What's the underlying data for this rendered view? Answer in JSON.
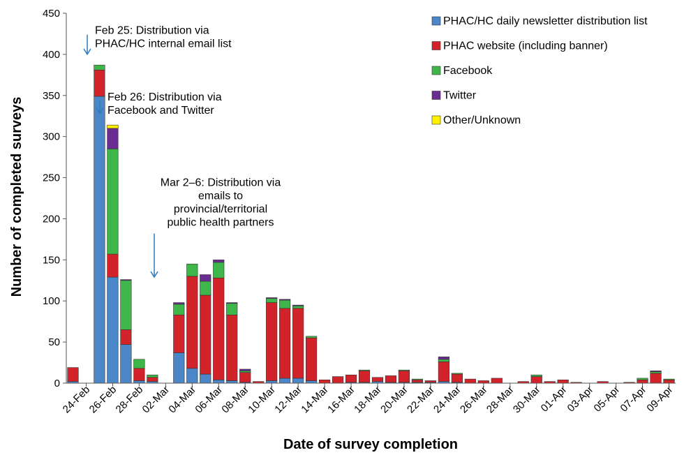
{
  "chart_data": {
    "type": "bar",
    "stacked": true,
    "title": "",
    "xlabel": "Date of survey completion",
    "ylabel": "Number of completed surveys",
    "ylim": [
      0,
      450
    ],
    "yticks": [
      0,
      50,
      100,
      150,
      200,
      250,
      300,
      350,
      400,
      450
    ],
    "grid": false,
    "legend_position": "top-right",
    "categories": [
      "23-Feb",
      "24-Feb",
      "25-Feb",
      "26-Feb",
      "27-Feb",
      "28-Feb",
      "01-Mar",
      "02-Mar",
      "03-Mar",
      "04-Mar",
      "05-Mar",
      "06-Mar",
      "07-Mar",
      "08-Mar",
      "09-Mar",
      "10-Mar",
      "11-Mar",
      "12-Mar",
      "13-Mar",
      "14-Mar",
      "15-Mar",
      "16-Mar",
      "17-Mar",
      "18-Mar",
      "19-Mar",
      "20-Mar",
      "21-Mar",
      "22-Mar",
      "23-Mar",
      "24-Mar",
      "25-Mar",
      "26-Mar",
      "27-Mar",
      "28-Mar",
      "29-Mar",
      "30-Mar",
      "31-Mar",
      "01-Apr",
      "02-Apr",
      "03-Apr",
      "04-Apr",
      "05-Apr",
      "06-Apr",
      "07-Apr",
      "08-Apr",
      "09-Apr"
    ],
    "tick_labels": [
      "24-Feb",
      "26-Feb",
      "28-Feb",
      "02-Mar",
      "04-Mar",
      "06-Mar",
      "08-Mar",
      "10-Mar",
      "12-Mar",
      "14-Mar",
      "16-Mar",
      "18-Mar",
      "20-Mar",
      "22-Mar",
      "24-Mar",
      "26-Mar",
      "28-Mar",
      "30-Mar",
      "01-Apr",
      "03-Apr",
      "05-Apr",
      "07-Apr",
      "09-Apr"
    ],
    "series": [
      {
        "name": "PHAC/HC daily newsletter distribution list",
        "color": "#4a86c8",
        "values": [
          2,
          0,
          349,
          129,
          47,
          3,
          2,
          0,
          37,
          18,
          11,
          4,
          3,
          1,
          0,
          3,
          6,
          6,
          3,
          0,
          0,
          1,
          1,
          2,
          1,
          1,
          1,
          1,
          2,
          1,
          0,
          0,
          0,
          0,
          0,
          0,
          0,
          0,
          0,
          0,
          0,
          0,
          0,
          0,
          0,
          0
        ]
      },
      {
        "name": "PHAC website (including banner)",
        "color": "#d2232a",
        "values": [
          17,
          0,
          32,
          28,
          18,
          15,
          5,
          0,
          46,
          112,
          96,
          124,
          80,
          12,
          2,
          95,
          85,
          85,
          52,
          4,
          8,
          9,
          14,
          5,
          8,
          14,
          3,
          2,
          24,
          10,
          5,
          3,
          6,
          0,
          2,
          8,
          2,
          4,
          1,
          0,
          2,
          0,
          1,
          4,
          12,
          4
        ]
      },
      {
        "name": "Facebook",
        "color": "#3fb649",
        "values": [
          0,
          0,
          6,
          128,
          60,
          11,
          3,
          0,
          13,
          15,
          17,
          19,
          14,
          2,
          0,
          5,
          10,
          3,
          2,
          0,
          0,
          0,
          1,
          0,
          0,
          1,
          1,
          0,
          3,
          1,
          0,
          0,
          0,
          0,
          0,
          2,
          0,
          0,
          0,
          0,
          0,
          0,
          0,
          2,
          2,
          1
        ]
      },
      {
        "name": "Twitter",
        "color": "#6a2c91",
        "values": [
          0,
          0,
          0,
          25,
          1,
          0,
          0,
          0,
          2,
          0,
          8,
          3,
          1,
          2,
          0,
          1,
          1,
          1,
          0,
          0,
          0,
          0,
          0,
          0,
          0,
          0,
          0,
          0,
          3,
          0,
          0,
          0,
          0,
          0,
          0,
          0,
          0,
          0,
          0,
          0,
          0,
          0,
          0,
          0,
          1,
          0
        ]
      },
      {
        "name": "Other/Unknown",
        "color": "#fff200",
        "values": [
          0,
          0,
          0,
          4,
          0,
          0,
          0,
          0,
          0,
          0,
          0,
          0,
          0,
          0,
          0,
          0,
          0,
          0,
          0,
          0,
          0,
          0,
          0,
          0,
          0,
          0,
          0,
          0,
          0,
          0,
          0,
          0,
          0,
          0,
          0,
          0,
          0,
          0,
          0,
          0,
          0,
          0,
          0,
          0,
          0,
          0
        ]
      }
    ],
    "annotations": [
      {
        "lines": [
          "Feb 25: Distribution via",
          "PHAC/HC internal email list"
        ],
        "category": "25-Feb",
        "value": 400,
        "label_value": 425
      },
      {
        "lines": [
          "Feb 26: Distribution via",
          "Facebook and Twitter"
        ],
        "category": "26-Feb",
        "value": 328,
        "label_value": 344
      },
      {
        "lines": [
          "Mar 2–6: Distribution via",
          "emails to",
          "provincial/territorial",
          "public health partners"
        ],
        "category": "02-Mar",
        "value": 129,
        "label_value": 240
      }
    ]
  }
}
